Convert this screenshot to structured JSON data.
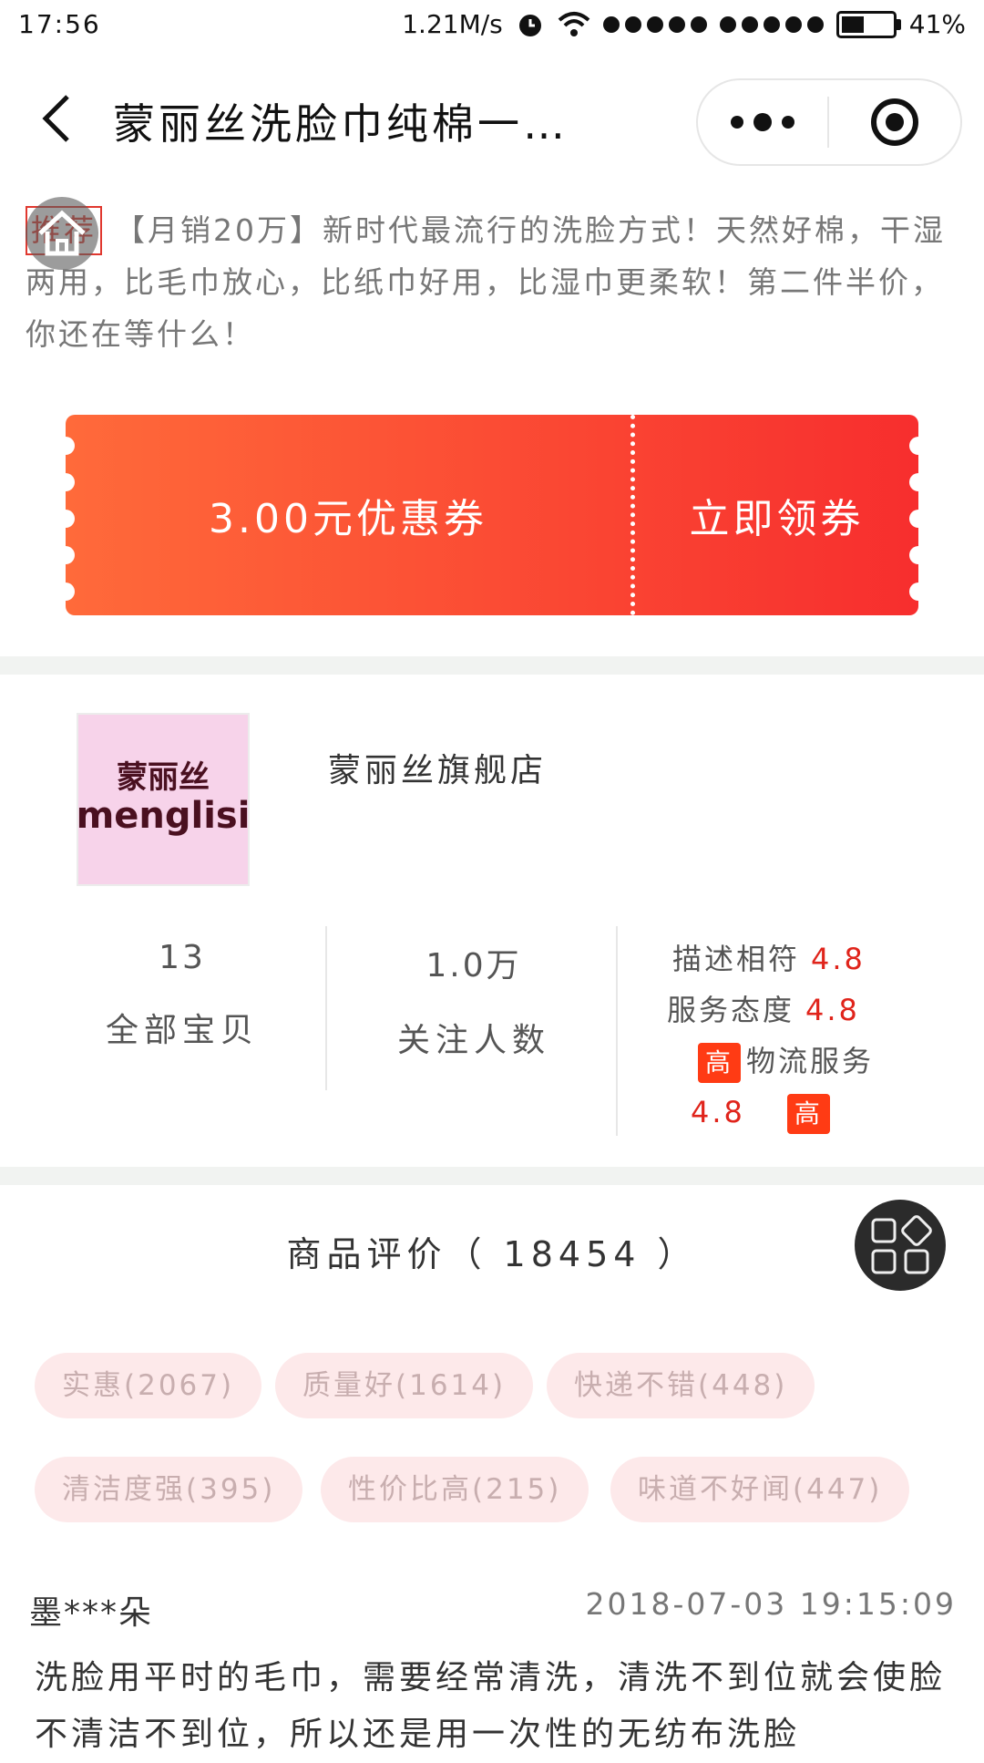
{
  "status_bar": {
    "time": "17:56",
    "network_speed": "1.21M/s",
    "battery": "41%",
    "icons": [
      "alarm-icon",
      "wifi-icon",
      "signal-icon",
      "signal-icon",
      "battery-icon"
    ]
  },
  "nav": {
    "title": "蒙丽丝洗脸巾纯棉一…",
    "back_icon": "chevron-left-icon",
    "more_icon": "more-dots-icon",
    "close_icon": "target-close-icon"
  },
  "description": {
    "tag": "推荐",
    "text": "【月销20万】新时代最流行的洗脸方式！天然好棉，干湿两用，比毛巾放心，比纸巾好用，比湿巾更柔软！第二件半价，你还在等什么！"
  },
  "coupon": {
    "amount_label": "3.00元优惠券",
    "claim_label": "立即领券",
    "gradient_start": "#ff6a3a",
    "gradient_end": "#f72e2e"
  },
  "shop": {
    "logo_cn": "蒙丽丝",
    "logo_en": "menglisi",
    "name": "蒙丽丝旗舰店",
    "stats": [
      {
        "value": "13",
        "label": "全部宝贝"
      },
      {
        "value": "1.0万",
        "label": "关注人数"
      }
    ],
    "ratings": {
      "desc_label": "描述相符",
      "desc_score": "4.8",
      "service_label": "服务态度",
      "service_score": "4.8",
      "service_badge": "高",
      "logistics_label": "物流服务",
      "logistics_score": "4.8",
      "logistics_badge": "高"
    }
  },
  "reviews": {
    "header": "商品评价（ 18454 ）",
    "tags": [
      "实惠(2067)",
      "质量好(1614)",
      "快递不错(448)",
      "清洁度强(395)",
      "性价比高(215)",
      "味道不好闻(447)"
    ],
    "first": {
      "user": "墨***朵",
      "date": "2018-07-03 19:15:09",
      "text": "洗脸用平时的毛巾，需要经常清洗，清洗不到位就会使脸不清洁不到位，所以还是用一次性的无纺布洗脸"
    }
  },
  "colors": {
    "accent_red": "#e0241b",
    "chip_bg": "#fde9ea",
    "badge_bg": "#ff3b14"
  }
}
